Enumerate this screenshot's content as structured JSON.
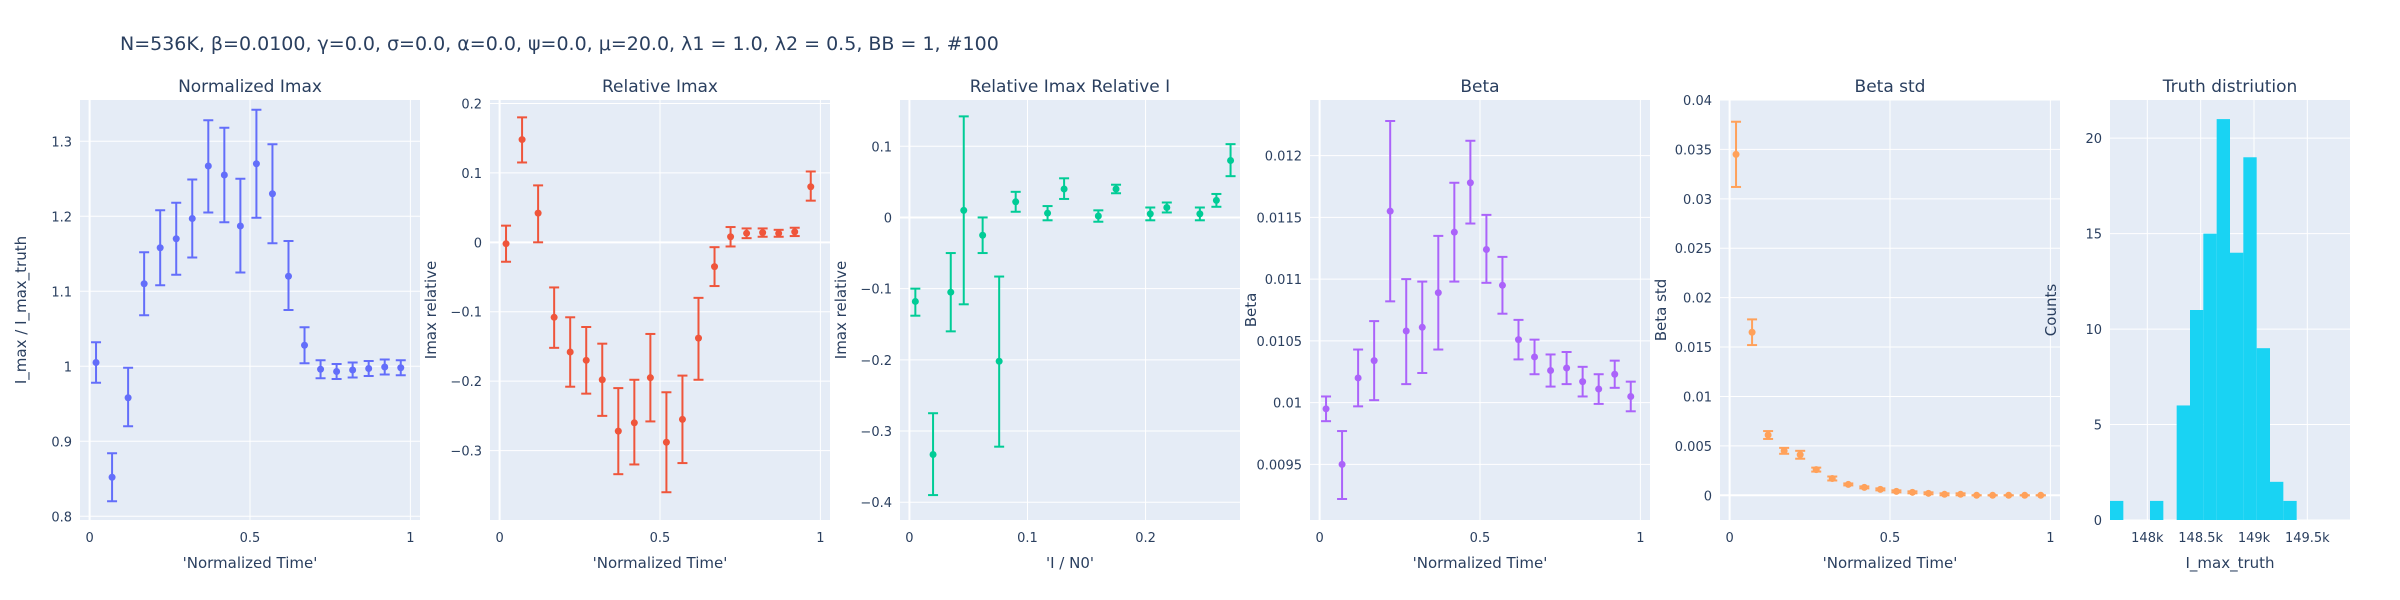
{
  "figure_title": "N=536K, β=0.0100, γ=0.0, σ=0.0,  α=0.0, ψ=0.0, μ=20.0, λ1 = 1.0, λ2 = 0.5, BB = 1, #100",
  "chart_data": [
    {
      "type": "scatter",
      "title": "Normalized Imax",
      "xlabel": "'Normalized Time'",
      "ylabel": "I_max / I_max_truth",
      "color": "#636efa",
      "xlim": [
        -0.03,
        1.03
      ],
      "ylim": [
        0.795,
        1.355
      ],
      "xticks": [
        {
          "v": 0,
          "t": "0"
        },
        {
          "v": 0.5,
          "t": "0.5"
        },
        {
          "v": 1,
          "t": "1"
        }
      ],
      "yticks": [
        {
          "v": 0.8,
          "t": "0.8"
        },
        {
          "v": 0.9,
          "t": "0.9"
        },
        {
          "v": 1,
          "t": "1"
        },
        {
          "v": 1.1,
          "t": "1.1"
        },
        {
          "v": 1.2,
          "t": "1.2"
        },
        {
          "v": 1.3,
          "t": "1.3"
        }
      ],
      "points": [
        {
          "x": 0.02,
          "y": 1.005,
          "lo": 0.978,
          "hi": 1.032
        },
        {
          "x": 0.07,
          "y": 0.852,
          "lo": 0.82,
          "hi": 0.884
        },
        {
          "x": 0.12,
          "y": 0.958,
          "lo": 0.92,
          "hi": 0.998
        },
        {
          "x": 0.17,
          "y": 1.11,
          "lo": 1.068,
          "hi": 1.152
        },
        {
          "x": 0.22,
          "y": 1.158,
          "lo": 1.108,
          "hi": 1.208
        },
        {
          "x": 0.27,
          "y": 1.17,
          "lo": 1.122,
          "hi": 1.218
        },
        {
          "x": 0.32,
          "y": 1.197,
          "lo": 1.145,
          "hi": 1.249
        },
        {
          "x": 0.37,
          "y": 1.267,
          "lo": 1.205,
          "hi": 1.328
        },
        {
          "x": 0.42,
          "y": 1.255,
          "lo": 1.192,
          "hi": 1.318
        },
        {
          "x": 0.47,
          "y": 1.187,
          "lo": 1.125,
          "hi": 1.25
        },
        {
          "x": 0.52,
          "y": 1.27,
          "lo": 1.198,
          "hi": 1.342
        },
        {
          "x": 0.57,
          "y": 1.23,
          "lo": 1.164,
          "hi": 1.296
        },
        {
          "x": 0.62,
          "y": 1.12,
          "lo": 1.075,
          "hi": 1.167
        },
        {
          "x": 0.67,
          "y": 1.028,
          "lo": 1.004,
          "hi": 1.052
        },
        {
          "x": 0.72,
          "y": 0.996,
          "lo": 0.984,
          "hi": 1.008
        },
        {
          "x": 0.77,
          "y": 0.993,
          "lo": 0.983,
          "hi": 1.003
        },
        {
          "x": 0.82,
          "y": 0.995,
          "lo": 0.985,
          "hi": 1.005
        },
        {
          "x": 0.87,
          "y": 0.997,
          "lo": 0.987,
          "hi": 1.007
        },
        {
          "x": 0.92,
          "y": 0.999,
          "lo": 0.989,
          "hi": 1.009
        },
        {
          "x": 0.97,
          "y": 0.998,
          "lo": 0.988,
          "hi": 1.008
        }
      ]
    },
    {
      "type": "scatter",
      "title": "Relative Imax",
      "xlabel": "'Normalized Time'",
      "ylabel": "Imax relative",
      "color": "#ef553b",
      "xlim": [
        -0.03,
        1.03
      ],
      "ylim": [
        -0.4,
        0.205
      ],
      "xticks": [
        {
          "v": 0,
          "t": "0"
        },
        {
          "v": 0.5,
          "t": "0.5"
        },
        {
          "v": 1,
          "t": "1"
        }
      ],
      "yticks": [
        {
          "v": -0.3,
          "t": "−0.3"
        },
        {
          "v": -0.2,
          "t": "−0.2"
        },
        {
          "v": -0.1,
          "t": "−0.1"
        },
        {
          "v": 0,
          "t": "0"
        },
        {
          "v": 0.1,
          "t": "0.1"
        },
        {
          "v": 0.2,
          "t": "0.2"
        }
      ],
      "points": [
        {
          "x": 0.02,
          "y": -0.002,
          "lo": -0.028,
          "hi": 0.024
        },
        {
          "x": 0.07,
          "y": 0.148,
          "lo": 0.115,
          "hi": 0.18
        },
        {
          "x": 0.12,
          "y": 0.042,
          "lo": 0.0,
          "hi": 0.082
        },
        {
          "x": 0.17,
          "y": -0.108,
          "lo": -0.152,
          "hi": -0.065
        },
        {
          "x": 0.22,
          "y": -0.158,
          "lo": -0.208,
          "hi": -0.108
        },
        {
          "x": 0.27,
          "y": -0.17,
          "lo": -0.218,
          "hi": -0.122
        },
        {
          "x": 0.32,
          "y": -0.198,
          "lo": -0.25,
          "hi": -0.146
        },
        {
          "x": 0.37,
          "y": -0.272,
          "lo": -0.334,
          "hi": -0.21
        },
        {
          "x": 0.42,
          "y": -0.26,
          "lo": -0.32,
          "hi": -0.198
        },
        {
          "x": 0.47,
          "y": -0.195,
          "lo": -0.258,
          "hi": -0.132
        },
        {
          "x": 0.52,
          "y": -0.288,
          "lo": -0.36,
          "hi": -0.216
        },
        {
          "x": 0.57,
          "y": -0.255,
          "lo": -0.318,
          "hi": -0.192
        },
        {
          "x": 0.62,
          "y": -0.138,
          "lo": -0.198,
          "hi": -0.08
        },
        {
          "x": 0.67,
          "y": -0.035,
          "lo": -0.063,
          "hi": -0.007
        },
        {
          "x": 0.72,
          "y": 0.008,
          "lo": -0.006,
          "hi": 0.022
        },
        {
          "x": 0.77,
          "y": 0.013,
          "lo": 0.006,
          "hi": 0.02
        },
        {
          "x": 0.82,
          "y": 0.014,
          "lo": 0.008,
          "hi": 0.02
        },
        {
          "x": 0.87,
          "y": 0.013,
          "lo": 0.008,
          "hi": 0.018
        },
        {
          "x": 0.92,
          "y": 0.015,
          "lo": 0.009,
          "hi": 0.021
        },
        {
          "x": 0.97,
          "y": 0.08,
          "lo": 0.06,
          "hi": 0.102
        }
      ]
    },
    {
      "type": "scatter",
      "title": "Relative Imax Relative I",
      "xlabel": "'I / N0'",
      "ylabel": "Imax relative",
      "color": "#00cc96",
      "xlim": [
        -0.008,
        0.28
      ],
      "ylim": [
        -0.425,
        0.165
      ],
      "xticks": [
        {
          "v": 0,
          "t": "0"
        },
        {
          "v": 0.1,
          "t": "0.1"
        },
        {
          "v": 0.2,
          "t": "0.2"
        }
      ],
      "yticks": [
        {
          "v": -0.4,
          "t": "−0.4"
        },
        {
          "v": -0.3,
          "t": "−0.3"
        },
        {
          "v": -0.2,
          "t": "−0.2"
        },
        {
          "v": -0.1,
          "t": "−0.1"
        },
        {
          "v": 0,
          "t": "0"
        },
        {
          "v": 0.1,
          "t": "0.1"
        }
      ],
      "points": [
        {
          "x": 0.005,
          "y": -0.118,
          "lo": -0.138,
          "hi": -0.1
        },
        {
          "x": 0.02,
          "y": -0.333,
          "lo": -0.39,
          "hi": -0.275
        },
        {
          "x": 0.035,
          "y": -0.105,
          "lo": -0.16,
          "hi": -0.05
        },
        {
          "x": 0.046,
          "y": 0.01,
          "lo": -0.122,
          "hi": 0.142
        },
        {
          "x": 0.062,
          "y": -0.025,
          "lo": -0.05,
          "hi": 0.0
        },
        {
          "x": 0.076,
          "y": -0.202,
          "lo": -0.322,
          "hi": -0.083
        },
        {
          "x": 0.09,
          "y": 0.022,
          "lo": 0.008,
          "hi": 0.036
        },
        {
          "x": 0.117,
          "y": 0.006,
          "lo": -0.004,
          "hi": 0.016
        },
        {
          "x": 0.131,
          "y": 0.04,
          "lo": 0.026,
          "hi": 0.055
        },
        {
          "x": 0.16,
          "y": 0.002,
          "lo": -0.006,
          "hi": 0.01
        },
        {
          "x": 0.175,
          "y": 0.04,
          "lo": 0.034,
          "hi": 0.046
        },
        {
          "x": 0.204,
          "y": 0.005,
          "lo": -0.004,
          "hi": 0.014
        },
        {
          "x": 0.218,
          "y": 0.014,
          "lo": 0.007,
          "hi": 0.021
        },
        {
          "x": 0.246,
          "y": 0.005,
          "lo": -0.004,
          "hi": 0.014
        },
        {
          "x": 0.26,
          "y": 0.024,
          "lo": 0.015,
          "hi": 0.033
        },
        {
          "x": 0.272,
          "y": 0.08,
          "lo": 0.058,
          "hi": 0.103
        }
      ]
    },
    {
      "type": "scatter",
      "title": "Beta",
      "xlabel": "'Normalized Time'",
      "ylabel": "Beta",
      "color": "#ab63fa",
      "xlim": [
        -0.03,
        1.03
      ],
      "ylim": [
        0.00905,
        0.01245
      ],
      "xticks": [
        {
          "v": 0,
          "t": "0"
        },
        {
          "v": 0.5,
          "t": "0.5"
        },
        {
          "v": 1,
          "t": "1"
        }
      ],
      "yticks": [
        {
          "v": 0.0095,
          "t": "0.0095"
        },
        {
          "v": 0.01,
          "t": "0.01"
        },
        {
          "v": 0.0105,
          "t": "0.0105"
        },
        {
          "v": 0.011,
          "t": "0.011"
        },
        {
          "v": 0.0115,
          "t": "0.0115"
        },
        {
          "v": 0.012,
          "t": "0.012"
        }
      ],
      "points": [
        {
          "x": 0.02,
          "y": 0.00995,
          "lo": 0.00985,
          "hi": 0.01005
        },
        {
          "x": 0.07,
          "y": 0.0095,
          "lo": 0.00922,
          "hi": 0.00977
        },
        {
          "x": 0.12,
          "y": 0.0102,
          "lo": 0.00997,
          "hi": 0.01043
        },
        {
          "x": 0.17,
          "y": 0.01034,
          "lo": 0.01002,
          "hi": 0.01066
        },
        {
          "x": 0.22,
          "y": 0.01155,
          "lo": 0.01082,
          "hi": 0.01228
        },
        {
          "x": 0.27,
          "y": 0.01058,
          "lo": 0.01015,
          "hi": 0.011
        },
        {
          "x": 0.32,
          "y": 0.01061,
          "lo": 0.01024,
          "hi": 0.01098
        },
        {
          "x": 0.37,
          "y": 0.01089,
          "lo": 0.01043,
          "hi": 0.01135
        },
        {
          "x": 0.42,
          "y": 0.01138,
          "lo": 0.01098,
          "hi": 0.01178
        },
        {
          "x": 0.47,
          "y": 0.01178,
          "lo": 0.01145,
          "hi": 0.01212
        },
        {
          "x": 0.52,
          "y": 0.01124,
          "lo": 0.01097,
          "hi": 0.01152
        },
        {
          "x": 0.57,
          "y": 0.01095,
          "lo": 0.01072,
          "hi": 0.01118
        },
        {
          "x": 0.62,
          "y": 0.01051,
          "lo": 0.01035,
          "hi": 0.01067
        },
        {
          "x": 0.67,
          "y": 0.01037,
          "lo": 0.01023,
          "hi": 0.01051
        },
        {
          "x": 0.72,
          "y": 0.01026,
          "lo": 0.01013,
          "hi": 0.01039
        },
        {
          "x": 0.77,
          "y": 0.01028,
          "lo": 0.01015,
          "hi": 0.01041
        },
        {
          "x": 0.82,
          "y": 0.01017,
          "lo": 0.01005,
          "hi": 0.01029
        },
        {
          "x": 0.87,
          "y": 0.01011,
          "lo": 0.00999,
          "hi": 0.01023
        },
        {
          "x": 0.92,
          "y": 0.01023,
          "lo": 0.01012,
          "hi": 0.01034
        },
        {
          "x": 0.97,
          "y": 0.01005,
          "lo": 0.00993,
          "hi": 0.01017
        }
      ]
    },
    {
      "type": "scatter",
      "title": "Beta std",
      "xlabel": "'Normalized Time'",
      "ylabel": "Beta std",
      "color": "#ffa15a",
      "xlim": [
        -0.03,
        1.03
      ],
      "ylim": [
        -0.0025,
        0.04
      ],
      "xticks": [
        {
          "v": 0,
          "t": "0"
        },
        {
          "v": 0.5,
          "t": "0.5"
        },
        {
          "v": 1,
          "t": "1"
        }
      ],
      "yticks": [
        {
          "v": 0,
          "t": "0"
        },
        {
          "v": 0.005,
          "t": "0.005"
        },
        {
          "v": 0.01,
          "t": "0.01"
        },
        {
          "v": 0.015,
          "t": "0.015"
        },
        {
          "v": 0.02,
          "t": "0.02"
        },
        {
          "v": 0.025,
          "t": "0.025"
        },
        {
          "v": 0.03,
          "t": "0.03"
        },
        {
          "v": 0.035,
          "t": "0.035"
        },
        {
          "v": 0.04,
          "t": "0.04"
        }
      ],
      "points": [
        {
          "x": 0.02,
          "y": 0.0345,
          "lo": 0.0312,
          "hi": 0.0378
        },
        {
          "x": 0.07,
          "y": 0.0165,
          "lo": 0.0152,
          "hi": 0.0178
        },
        {
          "x": 0.12,
          "y": 0.0061,
          "lo": 0.0057,
          "hi": 0.0065
        },
        {
          "x": 0.17,
          "y": 0.0045,
          "lo": 0.0042,
          "hi": 0.0048
        },
        {
          "x": 0.22,
          "y": 0.0041,
          "lo": 0.0037,
          "hi": 0.0045
        },
        {
          "x": 0.27,
          "y": 0.0026,
          "lo": 0.0024,
          "hi": 0.0028
        },
        {
          "x": 0.32,
          "y": 0.0017,
          "lo": 0.0015,
          "hi": 0.0019
        },
        {
          "x": 0.37,
          "y": 0.0011,
          "lo": 0.001,
          "hi": 0.0012
        },
        {
          "x": 0.42,
          "y": 0.0008,
          "lo": 0.0007,
          "hi": 0.0009
        },
        {
          "x": 0.47,
          "y": 0.0006,
          "lo": 0.0005,
          "hi": 0.0007
        },
        {
          "x": 0.52,
          "y": 0.0004,
          "lo": 0.0003,
          "hi": 0.0005
        },
        {
          "x": 0.57,
          "y": 0.0003,
          "lo": 0.0002,
          "hi": 0.0004
        },
        {
          "x": 0.62,
          "y": 0.0002,
          "lo": 0.0001,
          "hi": 0.0003
        },
        {
          "x": 0.67,
          "y": 0.0001,
          "lo": 0.0,
          "hi": 0.0002
        },
        {
          "x": 0.72,
          "y": 0.0001,
          "lo": 0.0,
          "hi": 0.0002
        },
        {
          "x": 0.77,
          "y": 0.0,
          "lo": 0.0,
          "hi": 0.0
        },
        {
          "x": 0.82,
          "y": 0.0,
          "lo": 0.0,
          "hi": 0.0
        },
        {
          "x": 0.87,
          "y": 0.0,
          "lo": 0.0,
          "hi": 0.0
        },
        {
          "x": 0.92,
          "y": 0.0,
          "lo": 0.0,
          "hi": 0.0
        },
        {
          "x": 0.97,
          "y": 0.0,
          "lo": 0.0,
          "hi": 0.0
        }
      ]
    },
    {
      "type": "bar",
      "title": "Truth distriution",
      "xlabel": "I_max_truth",
      "ylabel": "Counts",
      "color": "#19d3f3",
      "xlim": [
        147650,
        149900
      ],
      "ylim": [
        0,
        22
      ],
      "bin_width": 125,
      "xticks": [
        {
          "v": 148000,
          "t": "148k"
        },
        {
          "v": 148500,
          "t": "148.5k"
        },
        {
          "v": 149000,
          "t": "149k"
        },
        {
          "v": 149500,
          "t": "149.5k"
        }
      ],
      "yticks": [
        {
          "v": 0,
          "t": "0"
        },
        {
          "v": 5,
          "t": "5"
        },
        {
          "v": 10,
          "t": "10"
        },
        {
          "v": 15,
          "t": "15"
        },
        {
          "v": 20,
          "t": "20"
        }
      ],
      "bins": [
        {
          "x0": 147650,
          "count": 1
        },
        {
          "x0": 147775,
          "count": 0
        },
        {
          "x0": 147900,
          "count": 0
        },
        {
          "x0": 148025,
          "count": 1
        },
        {
          "x0": 148150,
          "count": 0
        },
        {
          "x0": 148275,
          "count": 6
        },
        {
          "x0": 148400,
          "count": 11
        },
        {
          "x0": 148525,
          "count": 15
        },
        {
          "x0": 148650,
          "count": 21
        },
        {
          "x0": 148775,
          "count": 14
        },
        {
          "x0": 148900,
          "count": 19
        },
        {
          "x0": 149025,
          "count": 9
        },
        {
          "x0": 149150,
          "count": 2
        },
        {
          "x0": 149275,
          "count": 1
        }
      ]
    }
  ]
}
